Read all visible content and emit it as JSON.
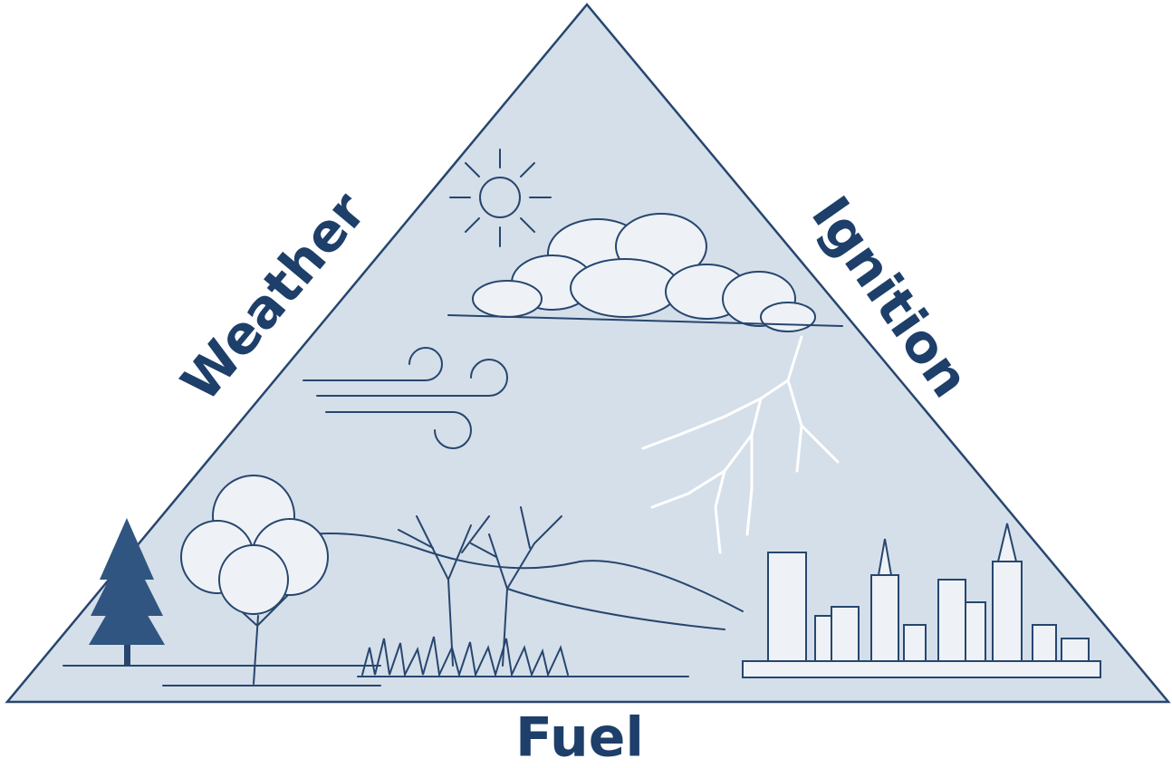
{
  "labels": {
    "left": "Weather",
    "right": "Ignition",
    "bottom": "Fuel"
  }
}
